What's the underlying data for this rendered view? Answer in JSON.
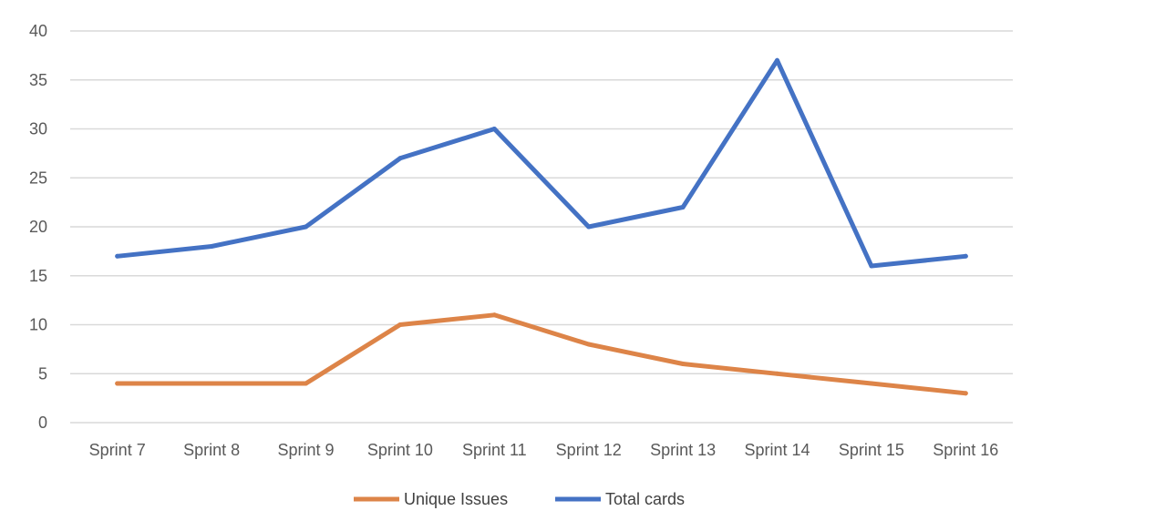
{
  "chart_data": {
    "type": "line",
    "title": "",
    "xlabel": "",
    "ylabel": "",
    "categories": [
      "Sprint 7",
      "Sprint 8",
      "Sprint 9",
      "Sprint 10",
      "Sprint 11",
      "Sprint 12",
      "Sprint 13",
      "Sprint 14",
      "Sprint 15",
      "Sprint 16"
    ],
    "ylim": [
      0,
      40
    ],
    "yticks": [
      0,
      5,
      10,
      15,
      20,
      25,
      30,
      35,
      40
    ],
    "grid": true,
    "legend_position": "bottom",
    "series": [
      {
        "name": "Unique Issues",
        "color": "#dd8448",
        "values": [
          4,
          4,
          4,
          10,
          11,
          8,
          6,
          5,
          4,
          3
        ]
      },
      {
        "name": "Total cards",
        "color": "#4472c4",
        "values": [
          17,
          18,
          20,
          27,
          30,
          20,
          22,
          37,
          16,
          17
        ]
      }
    ]
  }
}
